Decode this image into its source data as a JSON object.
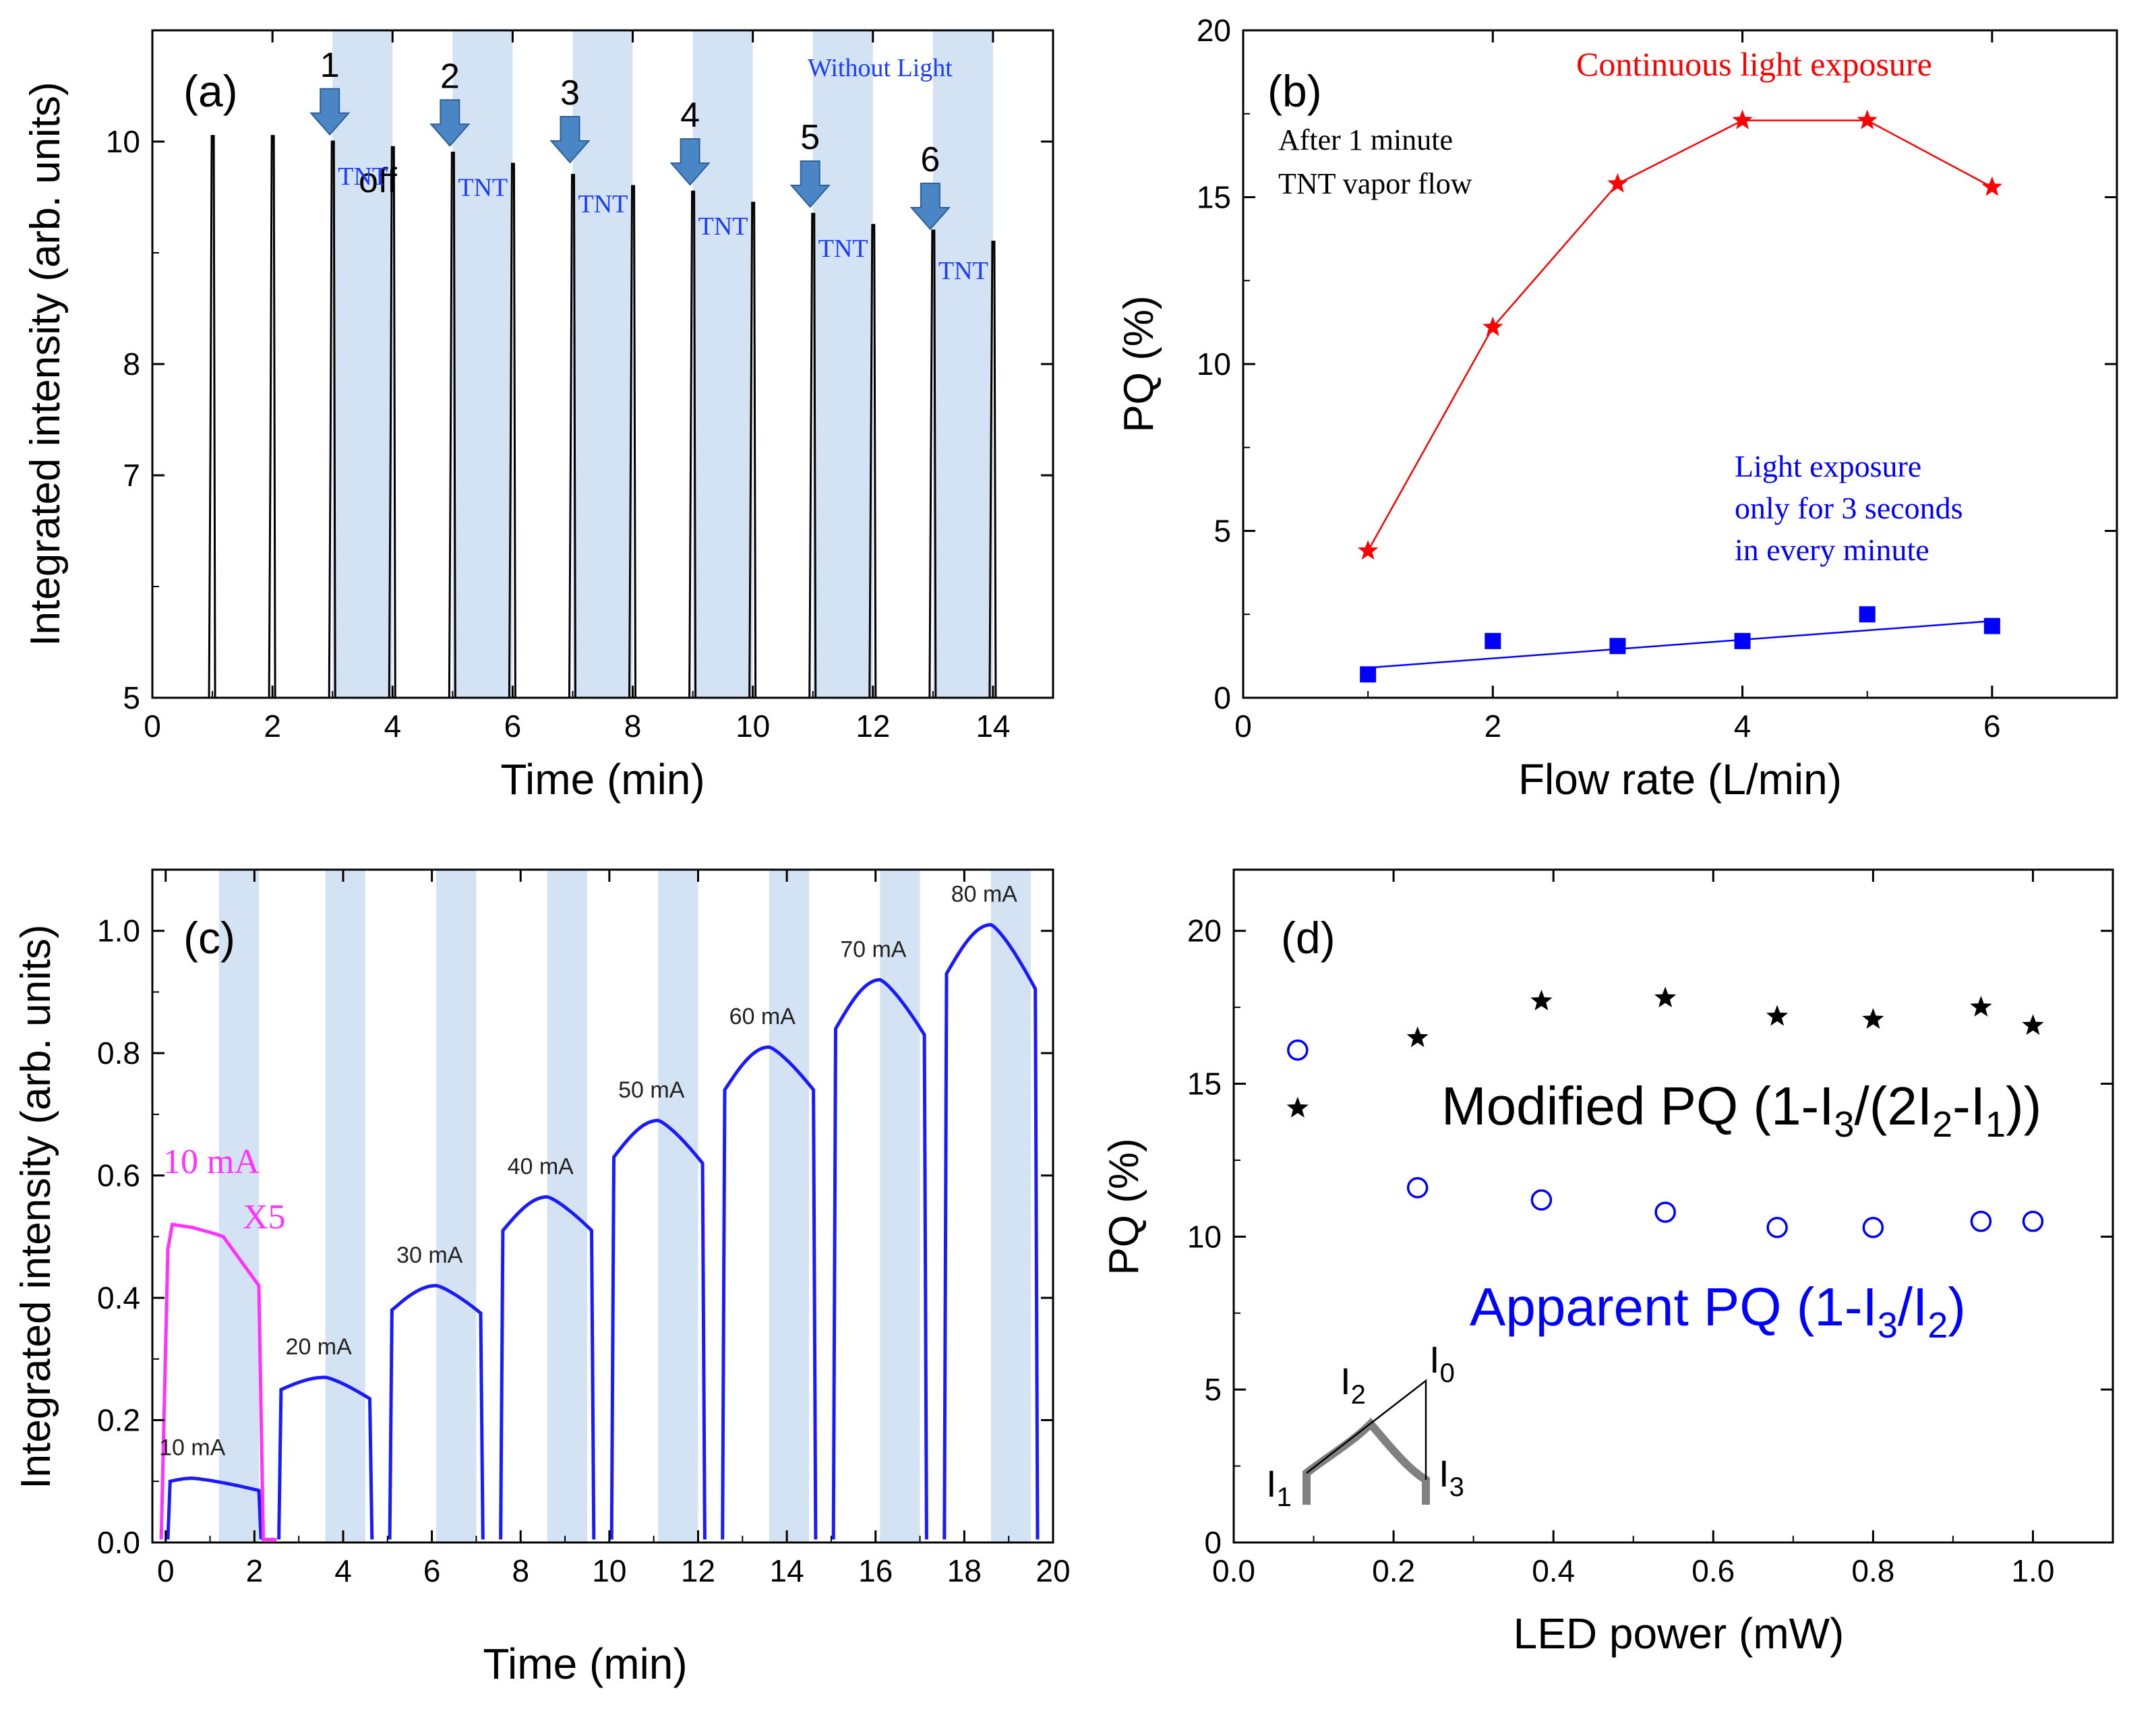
{
  "chart_data": [
    {
      "panel": "(a)",
      "type": "line",
      "xlabel": "Time (min)",
      "ylabel": "Integrated intensity (arb. units)",
      "xlim": [
        0,
        15
      ],
      "ylim": [
        5,
        11
      ],
      "xticks": [
        "0",
        "2",
        "4",
        "6",
        "8",
        "10",
        "12",
        "14"
      ],
      "yticks": [
        "5",
        "7",
        "8",
        "10"
      ],
      "shaded_x": [
        [
          3,
          4
        ],
        [
          5,
          6
        ],
        [
          7,
          8
        ],
        [
          9,
          10
        ],
        [
          11,
          12
        ],
        [
          13,
          14
        ]
      ],
      "pulses": [
        {
          "x": 1,
          "y": 10.05
        },
        {
          "x": 2,
          "y": 10.05
        },
        {
          "x": 3,
          "y": 10.0
        },
        {
          "x": 4,
          "y": 9.95
        },
        {
          "x": 5,
          "y": 9.9
        },
        {
          "x": 6,
          "y": 9.8
        },
        {
          "x": 7,
          "y": 9.7
        },
        {
          "x": 8,
          "y": 9.6
        },
        {
          "x": 9,
          "y": 9.55
        },
        {
          "x": 10,
          "y": 9.45
        },
        {
          "x": 11,
          "y": 9.35
        },
        {
          "x": 12,
          "y": 9.25
        },
        {
          "x": 13,
          "y": 9.2
        },
        {
          "x": 14,
          "y": 9.1
        }
      ],
      "arrows": [
        {
          "label": "1",
          "x": 3,
          "y": 10.05
        },
        {
          "label": "2",
          "x": 5,
          "y": 9.95
        },
        {
          "label": "3",
          "x": 7,
          "y": 9.8
        },
        {
          "label": "4",
          "x": 9,
          "y": 9.6
        },
        {
          "label": "5",
          "x": 11,
          "y": 9.4
        },
        {
          "label": "6",
          "x": 13,
          "y": 9.2
        }
      ],
      "annotations": {
        "off": "off",
        "without_light": "Without Light",
        "tnt": [
          "TNT",
          "TNT",
          "TNT",
          "TNT",
          "TNT",
          "TNT"
        ]
      }
    },
    {
      "panel": "(b)",
      "type": "line",
      "xlabel": "Flow rate (L/min)",
      "ylabel": "PQ (%)",
      "xlim": [
        0,
        7
      ],
      "ylim": [
        0,
        20
      ],
      "xticks": [
        "0",
        "2",
        "4",
        "6"
      ],
      "yticks": [
        "0",
        "5",
        "10",
        "15",
        "20"
      ],
      "series": [
        {
          "name": "Continuous light exposure",
          "color": "#ff0000",
          "marker": "star",
          "x": [
            1,
            2,
            3,
            4,
            5,
            6
          ],
          "y": [
            4.4,
            11.1,
            15.4,
            17.3,
            17.3,
            15.3
          ]
        },
        {
          "name": "Light  exposure only for 3 seconds in every minute",
          "color": "#0000ff",
          "marker": "square",
          "x": [
            1,
            2,
            3,
            4,
            5,
            6
          ],
          "y": [
            0.7,
            1.7,
            1.55,
            1.7,
            2.5,
            2.15
          ],
          "fit": [
            [
              1,
              0.9
            ],
            [
              6,
              2.3
            ]
          ]
        }
      ],
      "annotations": {
        "note_line1": "After 1 minute",
        "note_line2": "TNT vapor flow",
        "red_label": "Continuous light exposure",
        "blue_line1": "Light  exposure",
        "blue_line2": "only for 3 seconds",
        "blue_line3": "in every minute"
      }
    },
    {
      "panel": "(c)",
      "type": "line",
      "xlabel": "Time (min)",
      "ylabel": "Integrated intensity (arb. units)",
      "xlim": [
        -0.3,
        20
      ],
      "ylim": [
        0,
        1.1
      ],
      "xticks": [
        "0",
        "2",
        "4",
        "6",
        "8",
        "10",
        "12",
        "14",
        "16",
        "18",
        "20"
      ],
      "yticks": [
        "0.0",
        "0.2",
        "0.4",
        "0.6",
        "0.8",
        "1.0"
      ],
      "shaded_x": [
        [
          1.2,
          2.1
        ],
        [
          3.6,
          4.5
        ],
        [
          6.1,
          7.0
        ],
        [
          8.6,
          9.5
        ],
        [
          11.1,
          12.0
        ],
        [
          13.6,
          14.5
        ],
        [
          16.1,
          17.0
        ],
        [
          18.6,
          19.5
        ]
      ],
      "segments": [
        {
          "label": "10 mA",
          "start": 0.1,
          "peak_t": 0.6,
          "end": 2.1,
          "rise": 0.1,
          "peak": 0.105,
          "end_val": 0.085
        },
        {
          "label": "20 mA",
          "start": 2.6,
          "peak_t": 3.6,
          "end": 4.6,
          "rise": 0.25,
          "peak": 0.27,
          "end_val": 0.235
        },
        {
          "label": "30 mA",
          "start": 5.1,
          "peak_t": 6.1,
          "end": 7.1,
          "rise": 0.38,
          "peak": 0.42,
          "end_val": 0.375
        },
        {
          "label": "40 mA",
          "start": 7.6,
          "peak_t": 8.6,
          "end": 9.6,
          "rise": 0.51,
          "peak": 0.565,
          "end_val": 0.51
        },
        {
          "label": "50 mA",
          "start": 10.1,
          "peak_t": 11.1,
          "end": 12.1,
          "rise": 0.63,
          "peak": 0.69,
          "end_val": 0.62
        },
        {
          "label": "60 mA",
          "start": 12.6,
          "peak_t": 13.6,
          "end": 14.6,
          "rise": 0.74,
          "peak": 0.81,
          "end_val": 0.74
        },
        {
          "label": "70 mA",
          "start": 15.1,
          "peak_t": 16.1,
          "end": 17.1,
          "rise": 0.84,
          "peak": 0.92,
          "end_val": 0.83
        },
        {
          "label": "80 mA",
          "start": 17.6,
          "peak_t": 18.6,
          "end": 19.6,
          "rise": 0.93,
          "peak": 1.01,
          "end_val": 0.905
        }
      ],
      "magnified": {
        "label_line1": "10 mA",
        "label_line2": "X5",
        "color": "#ff33ff",
        "start": 0.1,
        "end": 2.1,
        "rise": 0.51,
        "peak": 0.52,
        "end_val": 0.42
      }
    },
    {
      "panel": "(d)",
      "type": "scatter",
      "xlabel": "LED power (mW)",
      "ylabel": "PQ (%)",
      "xlim": [
        0,
        1.1
      ],
      "ylim": [
        0,
        22
      ],
      "xticks": [
        "0.0",
        "0.2",
        "0.4",
        "0.6",
        "0.8",
        "1.0"
      ],
      "yticks": [
        "0",
        "5",
        "10",
        "15",
        "20"
      ],
      "series": [
        {
          "name": "Modified PQ (1-I3/(2I2-I1))",
          "color": "#000000",
          "marker": "star",
          "x": [
            0.08,
            0.23,
            0.385,
            0.54,
            0.68,
            0.8,
            0.935,
            1.0
          ],
          "y": [
            14.2,
            16.5,
            17.7,
            17.8,
            17.2,
            17.1,
            17.5,
            16.9
          ]
        },
        {
          "name": "Apparent PQ (1-I3/I2)",
          "color": "#0000ff",
          "marker": "circle",
          "x": [
            0.08,
            0.23,
            0.385,
            0.54,
            0.68,
            0.8,
            0.935,
            1.0
          ],
          "y": [
            16.1,
            11.6,
            11.2,
            10.8,
            10.3,
            10.3,
            10.5,
            10.5
          ]
        }
      ],
      "inset_labels": [
        "I",
        "1",
        "I",
        "2",
        "I",
        "0",
        "I",
        "3"
      ],
      "legend_modified": {
        "main": "Modified PQ (1-I",
        "s1": "3",
        "mid": "/(2I",
        "s2": "2",
        "mid2": "-I",
        "s3": "1",
        "end": "))"
      },
      "legend_apparent": {
        "main": "Apparent PQ (1-I",
        "s1": "3",
        "mid": "/I",
        "s2": "2",
        "end": ")"
      }
    }
  ]
}
